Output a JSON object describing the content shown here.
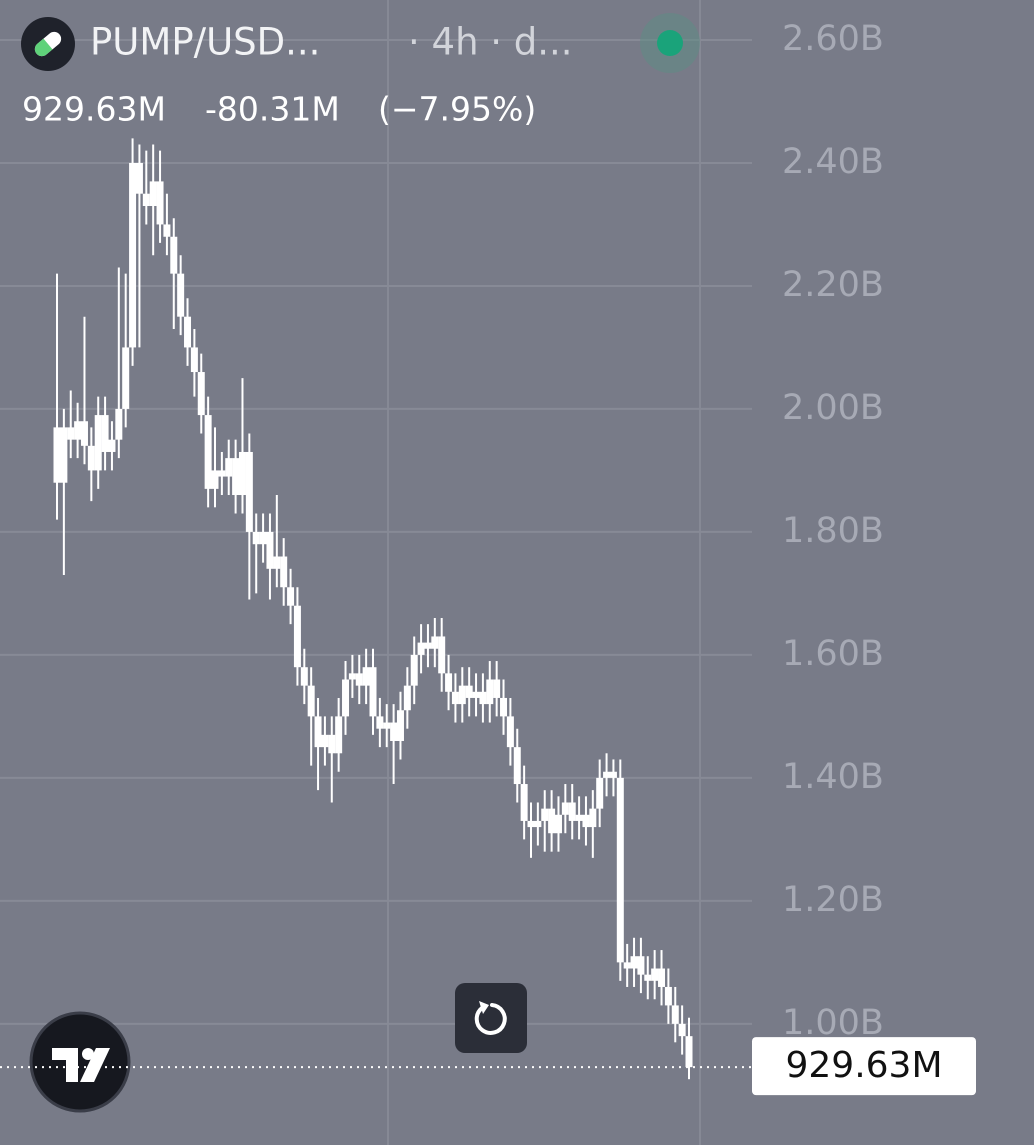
{
  "header": {
    "symbol": "PUMP/USD...",
    "interval": "· 4h · d...",
    "last": "929.63M",
    "change": "-80.31M",
    "change_percent": "(−7.95%)"
  },
  "chart_data": {
    "type": "candlestick",
    "color": "#ffffff",
    "ylim": [
      0.803,
      2.665
    ],
    "yticks": [
      {
        "value": 2.6,
        "label": "2.60B"
      },
      {
        "value": 2.4,
        "label": "2.40B"
      },
      {
        "value": 2.2,
        "label": "2.20B"
      },
      {
        "value": 2.0,
        "label": "2.00B"
      },
      {
        "value": 1.8,
        "label": "1.80B"
      },
      {
        "value": 1.6,
        "label": "1.60B"
      },
      {
        "value": 1.4,
        "label": "1.40B"
      },
      {
        "value": 1.2,
        "label": "1.20B"
      },
      {
        "value": 1.0,
        "label": "1.00B"
      }
    ],
    "grid": true,
    "last_price": {
      "value": 0.92963,
      "label": "929.63M"
    },
    "open": [
      1.97,
      1.88,
      1.97,
      1.95,
      1.98,
      1.94,
      1.9,
      1.99,
      1.93,
      1.95,
      2.0,
      2.1,
      2.4,
      2.35,
      2.33,
      2.37,
      2.3,
      2.28,
      2.22,
      2.15,
      2.1,
      2.06,
      1.99,
      1.87,
      1.9,
      1.89,
      1.92,
      1.86,
      1.93,
      1.8,
      1.78,
      1.8,
      1.74,
      1.76,
      1.71,
      1.68,
      1.58,
      1.55,
      1.5,
      1.45,
      1.47,
      1.44,
      1.5,
      1.56,
      1.57,
      1.55,
      1.58,
      1.5,
      1.48,
      1.49,
      1.46,
      1.51,
      1.55,
      1.6,
      1.62,
      1.61,
      1.63,
      1.57,
      1.54,
      1.52,
      1.55,
      1.53,
      1.54,
      1.52,
      1.56,
      1.53,
      1.5,
      1.45,
      1.39,
      1.33,
      1.32,
      1.33,
      1.35,
      1.31,
      1.34,
      1.36,
      1.33,
      1.34,
      1.32,
      1.35,
      1.4,
      1.41,
      1.4,
      1.1,
      1.09,
      1.11,
      1.08,
      1.07,
      1.09,
      1.06,
      1.03,
      1.0,
      0.98
    ],
    "high": [
      2.22,
      2.0,
      2.03,
      2.01,
      2.15,
      1.97,
      2.02,
      2.02,
      1.98,
      2.23,
      2.22,
      2.44,
      2.43,
      2.42,
      2.43,
      2.42,
      2.35,
      2.31,
      2.25,
      2.18,
      2.13,
      2.09,
      2.02,
      1.97,
      1.93,
      1.95,
      1.95,
      2.05,
      1.96,
      1.83,
      1.83,
      1.83,
      1.86,
      1.79,
      1.74,
      1.71,
      1.61,
      1.58,
      1.53,
      1.5,
      1.5,
      1.53,
      1.59,
      1.6,
      1.6,
      1.61,
      1.61,
      1.53,
      1.52,
      1.52,
      1.54,
      1.58,
      1.63,
      1.65,
      1.65,
      1.66,
      1.66,
      1.6,
      1.57,
      1.58,
      1.58,
      1.57,
      1.57,
      1.59,
      1.59,
      1.56,
      1.53,
      1.48,
      1.42,
      1.36,
      1.36,
      1.38,
      1.38,
      1.37,
      1.39,
      1.39,
      1.37,
      1.37,
      1.38,
      1.43,
      1.44,
      1.43,
      1.43,
      1.13,
      1.14,
      1.14,
      1.11,
      1.12,
      1.12,
      1.09,
      1.06,
      1.03,
      1.01
    ],
    "low": [
      1.82,
      1.73,
      1.92,
      1.92,
      1.91,
      1.85,
      1.87,
      1.9,
      1.9,
      1.92,
      1.97,
      2.07,
      2.1,
      2.3,
      2.25,
      2.27,
      2.25,
      2.13,
      2.12,
      2.07,
      2.02,
      1.96,
      1.84,
      1.84,
      1.86,
      1.86,
      1.83,
      1.83,
      1.69,
      1.7,
      1.75,
      1.69,
      1.71,
      1.68,
      1.65,
      1.55,
      1.52,
      1.42,
      1.38,
      1.42,
      1.36,
      1.41,
      1.47,
      1.53,
      1.52,
      1.52,
      1.47,
      1.45,
      1.45,
      1.39,
      1.43,
      1.48,
      1.52,
      1.57,
      1.58,
      1.58,
      1.54,
      1.51,
      1.49,
      1.49,
      1.5,
      1.5,
      1.49,
      1.49,
      1.5,
      1.47,
      1.42,
      1.36,
      1.3,
      1.27,
      1.29,
      1.28,
      1.28,
      1.28,
      1.31,
      1.3,
      1.3,
      1.29,
      1.27,
      1.32,
      1.37,
      1.37,
      1.07,
      1.06,
      1.06,
      1.05,
      1.04,
      1.04,
      1.03,
      1.0,
      0.97,
      0.95,
      0.91
    ],
    "close": [
      1.88,
      1.97,
      1.95,
      1.98,
      1.94,
      1.9,
      1.99,
      1.93,
      1.95,
      2.0,
      2.1,
      2.4,
      2.35,
      2.33,
      2.37,
      2.3,
      2.28,
      2.22,
      2.15,
      2.1,
      2.06,
      1.99,
      1.87,
      1.9,
      1.89,
      1.92,
      1.86,
      1.93,
      1.8,
      1.78,
      1.8,
      1.74,
      1.76,
      1.71,
      1.68,
      1.58,
      1.55,
      1.5,
      1.45,
      1.47,
      1.44,
      1.5,
      1.56,
      1.57,
      1.55,
      1.58,
      1.5,
      1.48,
      1.49,
      1.46,
      1.51,
      1.55,
      1.6,
      1.62,
      1.61,
      1.63,
      1.57,
      1.54,
      1.52,
      1.55,
      1.53,
      1.54,
      1.52,
      1.56,
      1.53,
      1.5,
      1.45,
      1.39,
      1.33,
      1.32,
      1.33,
      1.35,
      1.31,
      1.34,
      1.36,
      1.33,
      1.34,
      1.32,
      1.35,
      1.4,
      1.41,
      1.4,
      1.1,
      1.09,
      1.11,
      1.08,
      1.07,
      1.09,
      1.06,
      1.03,
      1.0,
      0.98,
      0.92963
    ]
  }
}
